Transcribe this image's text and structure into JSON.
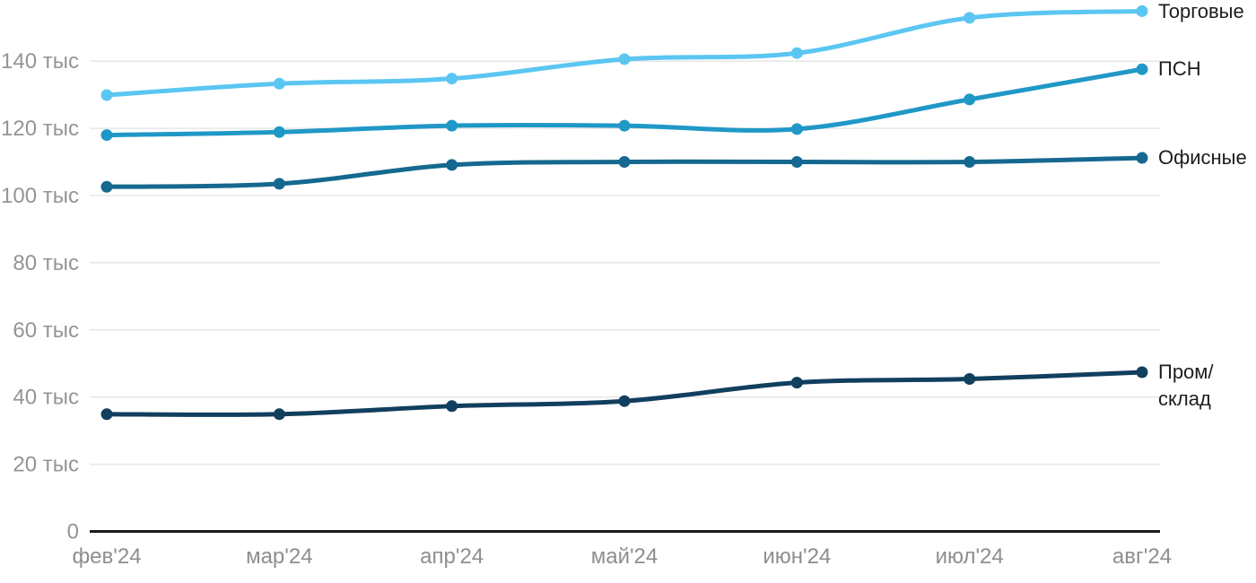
{
  "chart_data": {
    "type": "line",
    "title": "",
    "xlabel": "",
    "ylabel": "",
    "unit": "тыс",
    "x": [
      "фев'24",
      "мар'24",
      "апр'24",
      "май'24",
      "июн'24",
      "июл'24",
      "авг'24"
    ],
    "y_ticks": [
      {
        "value": 0,
        "label": "0"
      },
      {
        "value": 20,
        "label": "20 тыс"
      },
      {
        "value": 40,
        "label": "40 тыс"
      },
      {
        "value": 60,
        "label": "60 тыс"
      },
      {
        "value": 80,
        "label": "80 тыс"
      },
      {
        "value": 100,
        "label": "100 тыс"
      },
      {
        "value": 120,
        "label": "120 тыс"
      },
      {
        "value": 140,
        "label": "140 тыс"
      }
    ],
    "ylim": [
      0,
      156
    ],
    "grid": "horizontal",
    "legend_position": "right",
    "series": [
      {
        "id": "torgovye",
        "name": "Торговые",
        "color": "#5BC6F2",
        "values": [
          129.9,
          133.3,
          134.8,
          140.6,
          142.4,
          152.9,
          154.9
        ]
      },
      {
        "id": "psn",
        "name": "ПСН",
        "color": "#2098C7",
        "values": [
          118.0,
          118.9,
          120.8,
          120.8,
          119.8,
          128.6,
          137.6
        ]
      },
      {
        "id": "ofisnye",
        "name": "Офисные",
        "color": "#15688F",
        "values": [
          102.6,
          103.5,
          109.1,
          110.0,
          110.0,
          110.0,
          111.2
        ]
      },
      {
        "id": "prom-sklad",
        "name": "Пром/склад",
        "color": "#113F5E",
        "values": [
          34.9,
          34.9,
          37.3,
          38.8,
          44.3,
          45.4,
          47.4
        ]
      }
    ]
  },
  "colors": {
    "background": "#ffffff",
    "grid": "#e7e7e7",
    "axis": "#1a1a1a",
    "y_tick_text": "#949494",
    "x_tick_text": "#8e8e8e",
    "legend_text": "#1d1d1d"
  }
}
